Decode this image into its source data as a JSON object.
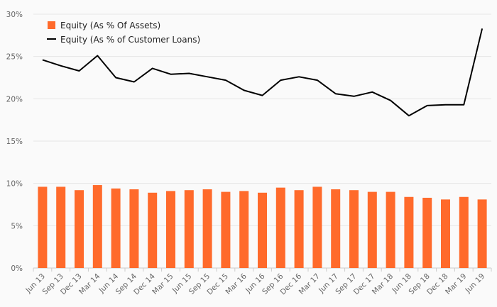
{
  "chart_data": {
    "type": "bar",
    "categories": [
      "Jun 13",
      "Sep 13",
      "Dec 13",
      "Mar 14",
      "Jun 14",
      "Sep 14",
      "Dec 14",
      "Mar 15",
      "Jun 15",
      "Sep 15",
      "Dec 15",
      "Mar 16",
      "Jun 16",
      "Sep 16",
      "Dec 16",
      "Mar 17",
      "Jun 17",
      "Sep 17",
      "Dec 17",
      "Mar 18",
      "Jun 18",
      "Sep 18",
      "Dec 18",
      "Mar 19",
      "Jun 19"
    ],
    "series": [
      {
        "name": "Equity (As % Of Assets)",
        "type": "bar",
        "color": "#ff6a2b",
        "values": [
          9.6,
          9.6,
          9.2,
          9.8,
          9.4,
          9.3,
          8.9,
          9.1,
          9.2,
          9.3,
          9.0,
          9.1,
          8.9,
          9.5,
          9.2,
          9.6,
          9.3,
          9.2,
          9.0,
          9.0,
          8.4,
          8.3,
          8.1,
          8.4,
          8.1
        ]
      },
      {
        "name": "Equity (As % of Customer Loans)",
        "type": "line",
        "color": "#000000",
        "values": [
          24.6,
          23.9,
          23.3,
          25.1,
          22.5,
          22.0,
          23.6,
          22.9,
          23.0,
          22.6,
          22.2,
          21.0,
          20.4,
          22.2,
          22.6,
          22.2,
          20.6,
          20.3,
          20.8,
          19.8,
          18.0,
          19.2,
          19.3,
          19.3,
          28.3
        ]
      }
    ],
    "yticks": [
      "0%",
      "5%",
      "10%",
      "15%",
      "20%",
      "25%",
      "30%"
    ],
    "ylim": [
      0,
      30
    ],
    "grid": true,
    "legend_position": "top-left"
  }
}
